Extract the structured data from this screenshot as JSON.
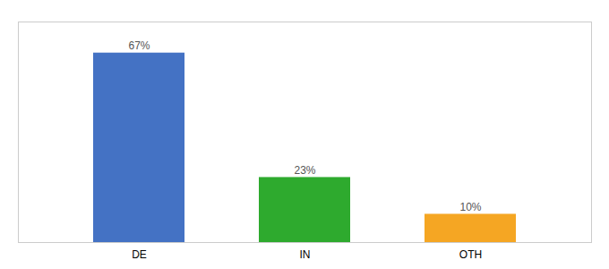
{
  "chart_data": {
    "type": "bar",
    "categories": [
      "DE",
      "IN",
      "OTH"
    ],
    "values": [
      67,
      23,
      10
    ],
    "value_labels": [
      "67%",
      "23%",
      "10%"
    ],
    "colors": [
      "#4472c4",
      "#2eaa2e",
      "#f5a623"
    ],
    "ylim": [
      0,
      78
    ],
    "data_labels": true,
    "tick_labels": "x"
  }
}
